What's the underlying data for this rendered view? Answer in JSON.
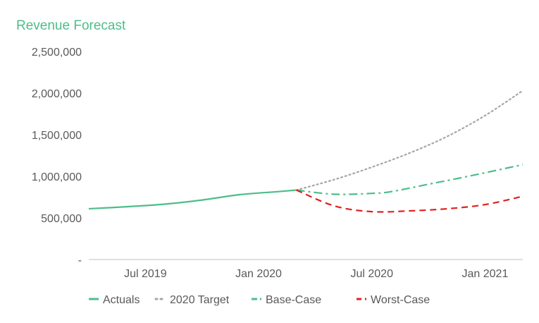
{
  "chart_data": {
    "type": "line",
    "title": "Revenue Forecast",
    "xlabel": "",
    "ylabel": "",
    "ylim": [
      0,
      2500000
    ],
    "xlim": [
      "2019-04",
      "2021-03"
    ],
    "x_ticks": [
      {
        "date": "2019-07",
        "label": "Jul 2019"
      },
      {
        "date": "2020-01",
        "label": "Jan 2020"
      },
      {
        "date": "2020-07",
        "label": "Jul 2020"
      },
      {
        "date": "2021-01",
        "label": "Jan 2021"
      }
    ],
    "y_ticks": [
      {
        "value": 0,
        "label": "-"
      },
      {
        "value": 500000,
        "label": "500,000"
      },
      {
        "value": 1000000,
        "label": "1,000,000"
      },
      {
        "value": 1500000,
        "label": "1,500,000"
      },
      {
        "value": 2000000,
        "label": "2,000,000"
      },
      {
        "value": 2500000,
        "label": "2,500,000"
      }
    ],
    "grid": false,
    "legend_position": "bottom",
    "series": [
      {
        "name": "Actuals",
        "style": "solid",
        "color": "#4dbd8a",
        "points": [
          {
            "x": "2019-04",
            "y": 610000
          },
          {
            "x": "2019-06",
            "y": 635000
          },
          {
            "x": "2019-08",
            "y": 665000
          },
          {
            "x": "2019-10",
            "y": 715000
          },
          {
            "x": "2019-12",
            "y": 780000
          },
          {
            "x": "2020-02",
            "y": 815000
          },
          {
            "x": "2020-03",
            "y": 835000
          }
        ]
      },
      {
        "name": "2020 Target",
        "style": "dotted",
        "color": "#a6a6a6",
        "points": [
          {
            "x": "2020-03",
            "y": 835000
          },
          {
            "x": "2020-05",
            "y": 960000
          },
          {
            "x": "2020-07",
            "y": 1110000
          },
          {
            "x": "2020-09",
            "y": 1280000
          },
          {
            "x": "2020-11",
            "y": 1480000
          },
          {
            "x": "2021-01",
            "y": 1730000
          },
          {
            "x": "2021-03",
            "y": 2030000
          }
        ]
      },
      {
        "name": "Base-Case",
        "style": "dashdot",
        "color": "#4dbd8a",
        "points": [
          {
            "x": "2020-03",
            "y": 835000
          },
          {
            "x": "2020-05",
            "y": 785000
          },
          {
            "x": "2020-07",
            "y": 795000
          },
          {
            "x": "2020-08",
            "y": 815000
          },
          {
            "x": "2020-10",
            "y": 905000
          },
          {
            "x": "2020-12",
            "y": 995000
          },
          {
            "x": "2021-03",
            "y": 1140000
          }
        ]
      },
      {
        "name": "Worst-Case",
        "style": "dashed",
        "color": "#e02020",
        "points": [
          {
            "x": "2020-03",
            "y": 835000
          },
          {
            "x": "2020-05",
            "y": 645000
          },
          {
            "x": "2020-07",
            "y": 575000
          },
          {
            "x": "2020-09",
            "y": 585000
          },
          {
            "x": "2020-11",
            "y": 610000
          },
          {
            "x": "2021-01",
            "y": 660000
          },
          {
            "x": "2021-03",
            "y": 760000
          }
        ]
      }
    ]
  },
  "colors": {
    "title": "#4dbd8a",
    "axis": "#595959",
    "tick_text": "#595959"
  }
}
